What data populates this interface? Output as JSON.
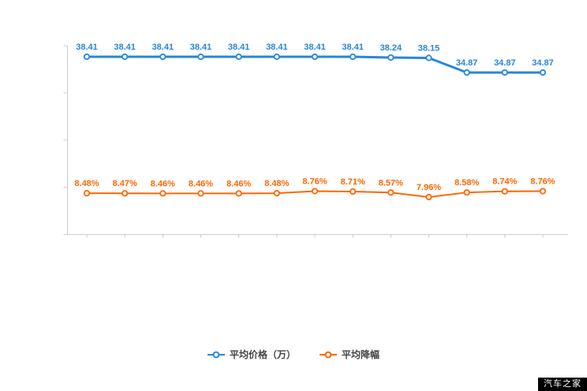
{
  "chart_data": {
    "type": "line",
    "title": "",
    "xlabel": "",
    "ylabel": "",
    "x_labels": [],
    "point_count": 13,
    "grid": false,
    "legend_position": "bottom",
    "axis_color": "#cccccc",
    "series": [
      {
        "name": "平均价格（万）",
        "color": "#2787d8",
        "values": [
          38.41,
          38.41,
          38.41,
          38.41,
          38.41,
          38.41,
          38.41,
          38.41,
          38.24,
          38.15,
          34.87,
          34.87,
          34.87
        ],
        "labels": [
          "38.41",
          "38.41",
          "38.41",
          "38.41",
          "38.41",
          "38.41",
          "38.41",
          "38.41",
          "38.24",
          "38.15",
          "34.87",
          "34.87",
          "34.87"
        ]
      },
      {
        "name": "平均降幅",
        "color": "#ff6600",
        "values": [
          8.48,
          8.47,
          8.46,
          8.46,
          8.46,
          8.48,
          8.76,
          8.71,
          8.57,
          7.96,
          8.58,
          8.74,
          8.76
        ],
        "labels": [
          "8.48%",
          "8.47%",
          "8.46%",
          "8.46%",
          "8.46%",
          "8.48%",
          "8.76%",
          "8.71%",
          "8.57%",
          "7.96%",
          "8.58%",
          "8.74%",
          "8.76%"
        ]
      }
    ]
  },
  "legend": {
    "items": [
      {
        "label": "平均价格（万）",
        "color": "#2787d8"
      },
      {
        "label": "平均降幅",
        "color": "#ff6600"
      }
    ]
  },
  "watermark": {
    "text": "汽车之家"
  }
}
